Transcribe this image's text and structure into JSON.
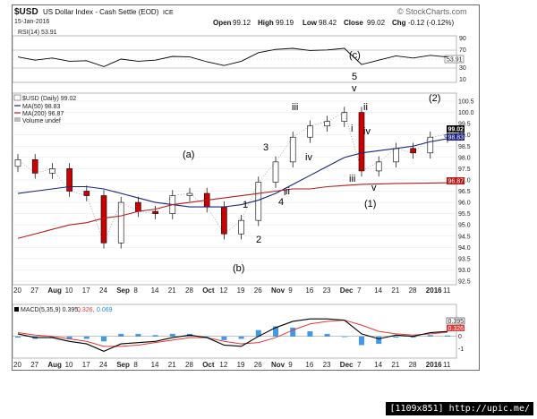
{
  "header": {
    "symbol": "$USD",
    "name": "US Dollar Index - Cash Settle (EOD)",
    "exchange": "ICE",
    "date": "15-Jan-2016",
    "source": "© StockCharts.com",
    "open_label": "Open",
    "open": "99.12",
    "high_label": "High",
    "high": "99.19",
    "low_label": "Low",
    "low": "98.42",
    "close_label": "Close",
    "close": "99.02",
    "chg_label": "Chg",
    "chg": "-0.12 (-0.12%)"
  },
  "rsi_panel": {
    "label": "RSI(14) 53.91",
    "last_value": "53.91",
    "levels": [
      "70",
      "50",
      "30"
    ],
    "top_label": "90",
    "bottom_label": "10"
  },
  "price_panel": {
    "legend_price": "$USD (Daily) 99.02",
    "legend_ma50": "MA(50) 98.83",
    "legend_ma200": "MA(200) 96.87",
    "legend_volume": "Volume undef",
    "last_price_label": "99.02",
    "ma50_label": "98.83",
    "ma200_label": "96.87",
    "y_ticks": [
      "100.5",
      "100.0",
      "99.5",
      "99.0",
      "98.5",
      "98.0",
      "97.5",
      "97.0",
      "96.5",
      "96.0",
      "95.5",
      "95.0",
      "94.5",
      "94.0",
      "93.5",
      "93.0",
      "92.5"
    ]
  },
  "x_axis_labels": [
    "20",
    "27",
    "Aug",
    "10",
    "17",
    "24",
    "Sep",
    "8",
    "14",
    "21",
    "28",
    "Oct",
    "12",
    "19",
    "26",
    "Nov",
    "9",
    "16",
    "23",
    "Dec",
    "7",
    "14",
    "21",
    "28",
    "2016",
    "11"
  ],
  "macd_panel": {
    "label_macd": "MACD(5,35,9) 0.395,",
    "label_signal": "0.326,",
    "label_hist": "0.069",
    "last_macd": "0.395",
    "last_signal": "0.326",
    "y_ticks": [
      "1",
      "0",
      "-1"
    ]
  },
  "wave_labels": [
    "(a)",
    "(b)",
    "1",
    "2",
    "3",
    "4",
    "5",
    "i",
    "ii",
    "iii",
    "iv",
    "v",
    "(c)",
    "i",
    "ii",
    "iii",
    "iv",
    "v",
    "(1)",
    "(2)",
    "v"
  ],
  "watermark": "[1109x851] http://upic.me/",
  "colors": {
    "up_candle": "#ffffff",
    "down_candle": "#cc0000",
    "ma50": "#1a237e",
    "ma200": "#b71c1c",
    "macd_line": "#000000",
    "signal_line": "#e53935",
    "histogram": "#1e88e5"
  },
  "chart_data": {
    "type": "line",
    "title": "$USD US Dollar Index - Cash Settle (EOD)",
    "ylabel": "",
    "ylim": [
      92.5,
      100.7
    ],
    "x": [
      "Jul 20",
      "Jul 27",
      "Aug 3",
      "Aug 10",
      "Aug 17",
      "Aug 24",
      "Aug 31",
      "Sep 8",
      "Sep 14",
      "Sep 21",
      "Sep 28",
      "Oct 5",
      "Oct 12",
      "Oct 19",
      "Oct 26",
      "Nov 2",
      "Nov 9",
      "Nov 16",
      "Nov 23",
      "Nov 30",
      "Dec 7",
      "Dec 14",
      "Dec 21",
      "Dec 28",
      "Jan 4",
      "Jan 11"
    ],
    "series": [
      {
        "name": "$USD (Daily)",
        "values": [
          97.9,
          97.3,
          97.5,
          96.5,
          96.3,
          94.2,
          96.0,
          95.6,
          95.5,
          96.3,
          96.4,
          95.8,
          94.6,
          95.2,
          96.9,
          97.8,
          98.9,
          99.4,
          99.6,
          100.0,
          97.4,
          97.8,
          98.4,
          98.2,
          98.9,
          99.02
        ]
      },
      {
        "name": "MA(50)",
        "values": [
          96.4,
          96.5,
          96.6,
          96.7,
          96.7,
          96.6,
          96.4,
          96.2,
          96.0,
          95.9,
          95.8,
          95.8,
          95.8,
          95.9,
          96.1,
          96.4,
          96.8,
          97.2,
          97.6,
          98.0,
          98.2,
          98.3,
          98.4,
          98.5,
          98.7,
          98.83
        ]
      },
      {
        "name": "MA(200)",
        "values": [
          94.4,
          94.6,
          94.8,
          95.0,
          95.1,
          95.3,
          95.4,
          95.6,
          95.7,
          95.9,
          96.0,
          96.1,
          96.2,
          96.3,
          96.4,
          96.5,
          96.6,
          96.6,
          96.7,
          96.75,
          96.8,
          96.82,
          96.84,
          96.85,
          96.86,
          96.87
        ]
      }
    ],
    "rsi": {
      "name": "RSI(14)",
      "ylim": [
        10,
        90
      ],
      "values": [
        54,
        48,
        52,
        46,
        47,
        36,
        50,
        46,
        48,
        55,
        54,
        45,
        38,
        46,
        62,
        68,
        70,
        66,
        67,
        70,
        40,
        48,
        56,
        52,
        57,
        53.91
      ]
    },
    "macd": {
      "ylim": [
        -1.6,
        1.7
      ],
      "macd": [
        0.2,
        -0.1,
        -0.1,
        -0.4,
        -0.6,
        -1.2,
        -0.6,
        -0.5,
        -0.4,
        -0.1,
        0.1,
        -0.1,
        -0.7,
        -0.8,
        0.0,
        0.7,
        1.2,
        1.4,
        1.4,
        1.3,
        0.2,
        -0.2,
        0.1,
        0.0,
        0.3,
        0.395
      ],
      "signal": [
        0.3,
        0.1,
        0.0,
        -0.2,
        -0.4,
        -0.8,
        -0.8,
        -0.7,
        -0.5,
        -0.3,
        -0.1,
        -0.1,
        -0.4,
        -0.6,
        -0.5,
        -0.1,
        0.5,
        1.0,
        1.2,
        1.3,
        0.9,
        0.4,
        0.2,
        0.1,
        0.2,
        0.326
      ],
      "histogram": [
        -0.1,
        -0.2,
        -0.1,
        -0.2,
        -0.2,
        -0.4,
        0.2,
        0.2,
        0.1,
        0.2,
        0.2,
        0.0,
        -0.3,
        -0.2,
        0.5,
        0.8,
        0.7,
        0.4,
        0.2,
        0.0,
        -0.7,
        -0.6,
        -0.1,
        -0.1,
        0.1,
        0.069
      ]
    }
  }
}
